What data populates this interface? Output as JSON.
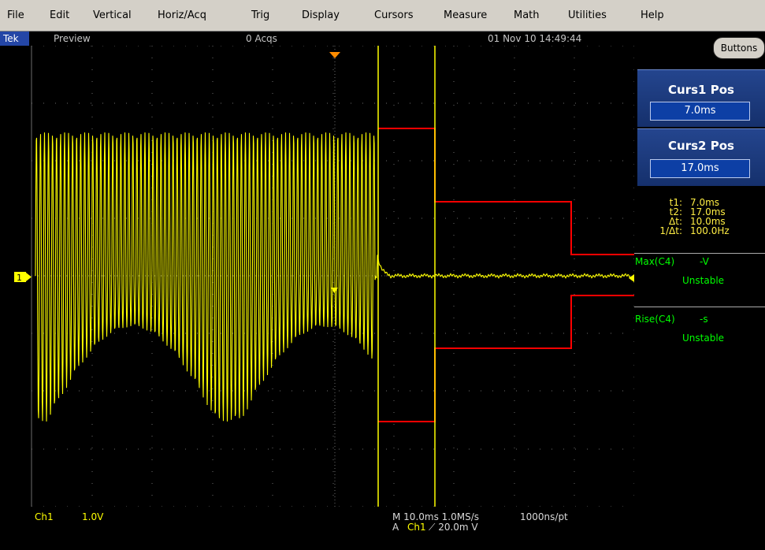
{
  "menu": [
    "File",
    "Edit",
    "Vertical",
    "Horiz/Acq",
    "Trig",
    "Display",
    "Cursors",
    "Measure",
    "Math",
    "Utilities",
    "Help"
  ],
  "status": {
    "brand": "Tek",
    "mode": "Preview",
    "acqs": "0 Acqs",
    "datetime": "01 Nov 10 14:49:44"
  },
  "panel": {
    "buttons_label": "Buttons",
    "curs1": {
      "title": "Curs1 Pos",
      "value": "7.0ms"
    },
    "curs2": {
      "title": "Curs2 Pos",
      "value": "17.0ms"
    },
    "readout": {
      "t1_label": "t1:",
      "t1": "7.0ms",
      "t2_label": "t2:",
      "t2": "17.0ms",
      "dt_label": "Δt:",
      "dt": "10.0ms",
      "inv_label": "1/Δt:",
      "inv": "100.0Hz"
    },
    "meas1": {
      "label": "Max(C4)",
      "value": "-V",
      "status": "Unstable"
    },
    "meas2": {
      "label": "Rise(C4)",
      "value": "-s",
      "status": "Unstable"
    }
  },
  "bottom": {
    "ch": "Ch1",
    "scale": "1.0V",
    "timebase": "M 10.0ms 1.0MS/s",
    "pts": "1000ns/pt",
    "trig_prefix": "A",
    "trig_ch": "Ch1",
    "trig_level": "⟋ 20.0m  V"
  },
  "channel_marker": "1",
  "colors": {
    "trace": "#ffff00",
    "limit": "#ff0000",
    "cursor": "#ffff00",
    "grid": "#6b6b6b",
    "panel": "#24458e"
  }
}
